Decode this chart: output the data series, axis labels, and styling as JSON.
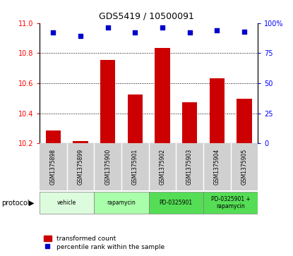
{
  "title": "GDS5419 / 10500091",
  "samples": [
    "GSM1375898",
    "GSM1375899",
    "GSM1375900",
    "GSM1375901",
    "GSM1375902",
    "GSM1375903",
    "GSM1375904",
    "GSM1375905"
  ],
  "bar_values": [
    10.285,
    10.215,
    10.755,
    10.525,
    10.835,
    10.475,
    10.635,
    10.495
  ],
  "scatter_values": [
    92,
    89,
    96,
    92,
    96,
    92,
    94,
    93
  ],
  "ylim_left": [
    10.2,
    11.0
  ],
  "ylim_right": [
    0,
    100
  ],
  "yticks_left": [
    10.2,
    10.4,
    10.6,
    10.8,
    11.0
  ],
  "yticks_right": [
    0,
    25,
    50,
    75,
    100
  ],
  "bar_color": "#cc0000",
  "scatter_color": "#0000cc",
  "bar_bottom": 10.2,
  "protocols": [
    {
      "label": "vehicle",
      "start": 0,
      "end": 2
    },
    {
      "label": "rapamycin",
      "start": 2,
      "end": 4
    },
    {
      "label": "PD-0325901",
      "start": 4,
      "end": 6
    },
    {
      "label": "PD-0325901 +\nrapamycin",
      "start": 6,
      "end": 8
    }
  ],
  "proto_colors": [
    "#ddfcdd",
    "#aaffaa",
    "#55dd55",
    "#55dd55"
  ],
  "legend_bar_label": "transformed count",
  "legend_scatter_label": "percentile rank within the sample"
}
